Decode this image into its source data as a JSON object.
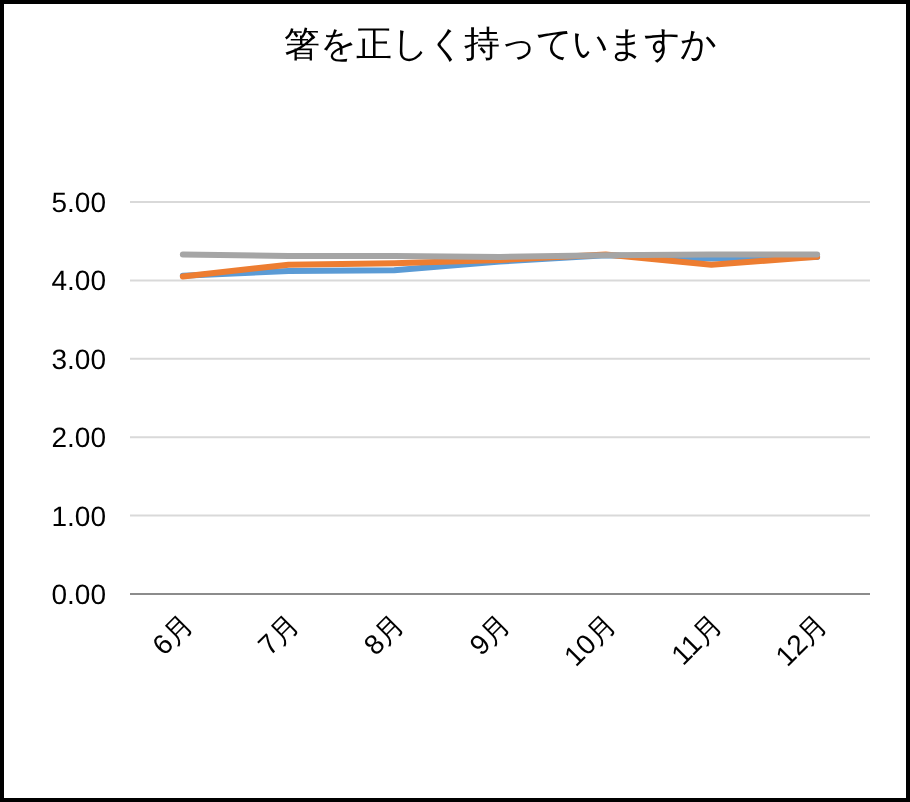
{
  "chart_data": {
    "type": "line",
    "title": "箸を正しく持っていますか",
    "categories": [
      "6月",
      "7月",
      "8月",
      "9月",
      "10月",
      "11月",
      "12月"
    ],
    "series": [
      {
        "color": "#5b9bd5",
        "values": [
          4.06,
          4.12,
          4.13,
          4.24,
          4.32,
          4.28,
          4.3
        ]
      },
      {
        "color": "#ed7d31",
        "values": [
          4.05,
          4.2,
          4.22,
          4.26,
          4.33,
          4.2,
          4.3
        ]
      },
      {
        "color": "#a5a5a5",
        "values": [
          4.33,
          4.31,
          4.31,
          4.3,
          4.32,
          4.33,
          4.33
        ]
      }
    ],
    "ylim": [
      0,
      5
    ],
    "yticks": [
      {
        "value": 0,
        "label": "0.00"
      },
      {
        "value": 1,
        "label": "1.00"
      },
      {
        "value": 2,
        "label": "2.00"
      },
      {
        "value": 3,
        "label": "3.00"
      },
      {
        "value": 4,
        "label": "4.00"
      },
      {
        "value": 5,
        "label": "5.00"
      }
    ],
    "grid": "y",
    "marker": "none",
    "line_style": "solid"
  }
}
